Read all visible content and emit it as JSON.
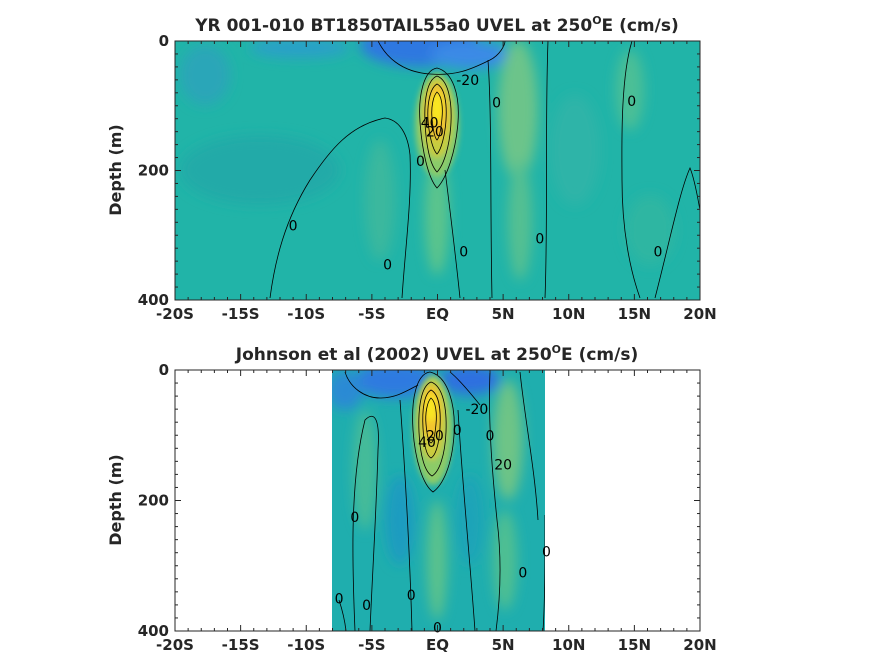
{
  "chart_data": [
    {
      "type": "heatmap",
      "title_main": "YR 001-010 BT1850TAIL55a0 UVEL at 250",
      "title_sup": "O",
      "title_end": "E (cm/s)",
      "ylabel": "Depth (m)",
      "x_ticks": [
        "-20S",
        "-15S",
        "-10S",
        "-5S",
        "EQ",
        "5N",
        "10N",
        "15N",
        "20N"
      ],
      "x_values": [
        -20,
        -15,
        -10,
        -5,
        0,
        5,
        10,
        15,
        20
      ],
      "y_ticks": [
        "0",
        "200",
        "400"
      ],
      "y_values": [
        0,
        200,
        400
      ],
      "xlim": [
        -20,
        20
      ],
      "ylim": [
        0,
        400
      ],
      "data_extent": [
        -20,
        20
      ],
      "contour_labels": [
        {
          "text": "-20",
          "x": 2.3,
          "y": 60
        },
        {
          "text": "0",
          "x": 4.5,
          "y": 95
        },
        {
          "text": "0",
          "x": 14.8,
          "y": 93
        },
        {
          "text": "20",
          "x": -0.2,
          "y": 140
        },
        {
          "text": "40",
          "x": -0.6,
          "y": 126
        },
        {
          "text": "0",
          "x": -1.3,
          "y": 185
        },
        {
          "text": "0",
          "x": -11,
          "y": 285
        },
        {
          "text": "0",
          "x": -3.8,
          "y": 345
        },
        {
          "text": "0",
          "x": 2.0,
          "y": 325
        },
        {
          "text": "0",
          "x": 7.8,
          "y": 305
        },
        {
          "text": "0",
          "x": 16.8,
          "y": 325
        }
      ]
    },
    {
      "type": "heatmap",
      "title_main": "Johnson et al (2002) UVEL at 250",
      "title_sup": "O",
      "title_end": "E (cm/s)",
      "ylabel": "Depth (m)",
      "x_ticks": [
        "-20S",
        "-15S",
        "-10S",
        "-5S",
        "EQ",
        "5N",
        "10N",
        "15N",
        "20N"
      ],
      "x_values": [
        -20,
        -15,
        -10,
        -5,
        0,
        5,
        10,
        15,
        20
      ],
      "y_ticks": [
        "0",
        "200",
        "400"
      ],
      "y_values": [
        0,
        200,
        400
      ],
      "xlim": [
        -20,
        20
      ],
      "ylim": [
        0,
        400
      ],
      "data_extent": [
        -8,
        8.3
      ],
      "contour_labels": [
        {
          "text": "-20",
          "x": 3.0,
          "y": 60
        },
        {
          "text": "20",
          "x": -0.2,
          "y": 100
        },
        {
          "text": "40",
          "x": -0.8,
          "y": 110
        },
        {
          "text": "0",
          "x": 1.5,
          "y": 92
        },
        {
          "text": "0",
          "x": 4.0,
          "y": 100
        },
        {
          "text": "20",
          "x": 5.0,
          "y": 145
        },
        {
          "text": "0",
          "x": -6.3,
          "y": 225
        },
        {
          "text": "0",
          "x": 8.3,
          "y": 278
        },
        {
          "text": "0",
          "x": 6.5,
          "y": 310
        },
        {
          "text": "0",
          "x": -7.5,
          "y": 350
        },
        {
          "text": "0",
          "x": -5.4,
          "y": 360
        },
        {
          "text": "0",
          "x": -2.0,
          "y": 345
        },
        {
          "text": "0",
          "x": 0,
          "y": 395
        }
      ]
    }
  ]
}
